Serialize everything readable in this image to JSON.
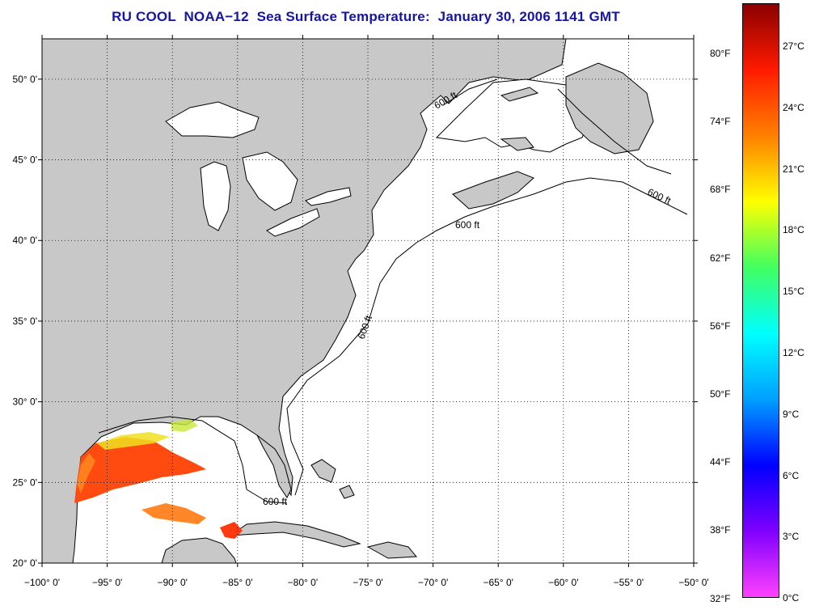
{
  "title": "RU COOL  NOAA−12  Sea Surface Temperature:  January 30, 2006 1141 GMT",
  "map": {
    "lon_range": [
      -100,
      -50
    ],
    "lat_range": [
      20,
      52.5
    ],
    "lon_ticks": [
      {
        "value": -100,
        "label": "−100° 0'"
      },
      {
        "value": -95,
        "label": "−95° 0'"
      },
      {
        "value": -90,
        "label": "−90° 0'"
      },
      {
        "value": -85,
        "label": "−85° 0'"
      },
      {
        "value": -80,
        "label": "−80° 0'"
      },
      {
        "value": -75,
        "label": "−75° 0'"
      },
      {
        "value": -70,
        "label": "−70° 0'"
      },
      {
        "value": -65,
        "label": "−65° 0'"
      },
      {
        "value": -60,
        "label": "−60° 0'"
      },
      {
        "value": -55,
        "label": "−55° 0'"
      },
      {
        "value": -50,
        "label": "−50° 0'"
      }
    ],
    "lat_ticks": [
      {
        "value": 20,
        "label": "20° 0'"
      },
      {
        "value": 25,
        "label": "25° 0'"
      },
      {
        "value": 30,
        "label": "30° 0'"
      },
      {
        "value": 35,
        "label": "35° 0'"
      },
      {
        "value": 40,
        "label": "40° 0'"
      },
      {
        "value": 45,
        "label": "45° 0'"
      },
      {
        "value": 50,
        "label": "50° 0'"
      }
    ],
    "grid": "dotted",
    "land_color": "#c8c8c8",
    "ocean_color": "#ffffff",
    "contour_label": "600 ft",
    "sst_patch_colors": [
      "#ff4a10",
      "#ff7a10",
      "#ffb020",
      "#f0f020",
      "#a0e040",
      "#ff2a10"
    ]
  },
  "colorbar": {
    "celsius_labels": [
      "27°C",
      "24°C",
      "21°C",
      "18°C",
      "15°C",
      "12°C",
      "9°C",
      "6°C",
      "3°C",
      "0°C"
    ],
    "fahrenheit_labels": [
      "80°F",
      "74°F",
      "68°F",
      "62°F",
      "56°F",
      "50°F",
      "44°F",
      "38°F",
      "32°F"
    ],
    "gradient_stops": [
      "#8b0000",
      "#ff1a00",
      "#ff8000",
      "#ffff00",
      "#40ff60",
      "#00ffff",
      "#00a0ff",
      "#0000ff",
      "#8000ff",
      "#ff40ff"
    ]
  }
}
